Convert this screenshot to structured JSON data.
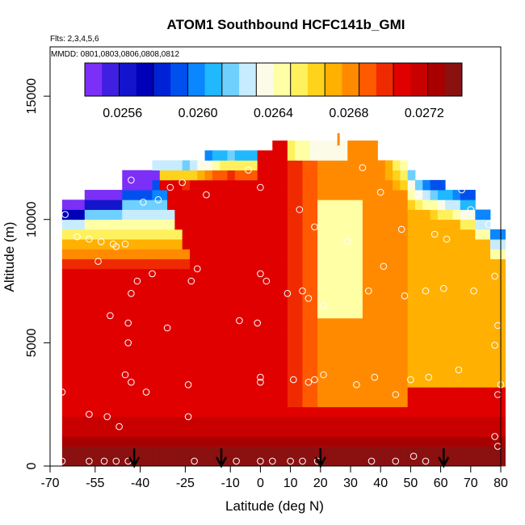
{
  "chart_data": {
    "type": "heatmap",
    "title": "ATOM1 Southbound HCFC141b_GMI",
    "subtitle_flights": "Flts: 2,3,4,5,6",
    "subtitle_dates": "MMDD: 0801,0803,0806,0808,0812",
    "xlabel": "Latitude (deg N)",
    "ylabel": "Altitude (m)",
    "xlim": [
      -70,
      80
    ],
    "ylim": [
      0,
      17000
    ],
    "x_ticks": [
      -70,
      -55,
      -40,
      -25,
      -10,
      0,
      10,
      20,
      30,
      40,
      50,
      60,
      70,
      80
    ],
    "x_tick_labels": [
      "-70",
      "-55",
      "-40",
      "-25",
      "-10",
      "0",
      "10",
      "20",
      "30",
      "40",
      "50",
      "60",
      "70",
      "80"
    ],
    "y_ticks": [
      0,
      5000,
      10000,
      15000
    ],
    "y_tick_labels": [
      "0",
      "5000",
      "10000",
      "15000"
    ],
    "colorbar": {
      "range": [
        0.0254,
        0.0274
      ],
      "tick_values": [
        0.0256,
        0.026,
        0.0264,
        0.0268,
        0.0272
      ],
      "tick_labels": [
        "0.0256",
        "0.0260",
        "0.0264",
        "0.0268",
        "0.0272"
      ],
      "colors": [
        "#7b2ff7",
        "#3f1fe0",
        "#1414cc",
        "#0000b8",
        "#0022d6",
        "#0050ee",
        "#0a86ff",
        "#20b8ff",
        "#6fd0ff",
        "#c7ecff",
        "#fbfbe8",
        "#ffffa6",
        "#fff15e",
        "#ffd21c",
        "#ffb000",
        "#ff8a00",
        "#ff5a00",
        "#f02a00",
        "#e00000",
        "#c80000",
        "#a80000",
        "#8b1010"
      ]
    },
    "profile_markers_lat": [
      -42,
      -13,
      20,
      61
    ],
    "observation_points": [
      {
        "lat": -65,
        "alt": 10200
      },
      {
        "lat": -61,
        "alt": 9300
      },
      {
        "lat": -57,
        "alt": 9200
      },
      {
        "lat": -53,
        "alt": 9100
      },
      {
        "lat": -49,
        "alt": 9000
      },
      {
        "lat": -45,
        "alt": 9000
      },
      {
        "lat": -48,
        "alt": 8900
      },
      {
        "lat": -54,
        "alt": 8300
      },
      {
        "lat": -43,
        "alt": 11600
      },
      {
        "lat": -39,
        "alt": 10700
      },
      {
        "lat": -34,
        "alt": 10800
      },
      {
        "lat": -30,
        "alt": 11300
      },
      {
        "lat": -26,
        "alt": 11500
      },
      {
        "lat": -18,
        "alt": 11000
      },
      {
        "lat": -4,
        "alt": 12000
      },
      {
        "lat": 0,
        "alt": 11300
      },
      {
        "lat": 13,
        "alt": 10400
      },
      {
        "lat": 18,
        "alt": 9700
      },
      {
        "lat": 29,
        "alt": 9100
      },
      {
        "lat": 34,
        "alt": 12100
      },
      {
        "lat": 40,
        "alt": 11100
      },
      {
        "lat": 47,
        "alt": 9600
      },
      {
        "lat": 52,
        "alt": 11000
      },
      {
        "lat": 58,
        "alt": 9400
      },
      {
        "lat": 62,
        "alt": 9200
      },
      {
        "lat": 67,
        "alt": 11200
      },
      {
        "lat": 70,
        "alt": 10400
      },
      {
        "lat": 76,
        "alt": 9800
      },
      {
        "lat": 78,
        "alt": 7700
      },
      {
        "lat": -36,
        "alt": 7800
      },
      {
        "lat": -41,
        "alt": 7500
      },
      {
        "lat": -43,
        "alt": 7000
      },
      {
        "lat": -21,
        "alt": 8000
      },
      {
        "lat": -23,
        "alt": 7500
      },
      {
        "lat": 0,
        "alt": 7800
      },
      {
        "lat": 2,
        "alt": 7500
      },
      {
        "lat": 9,
        "alt": 7000
      },
      {
        "lat": 14,
        "alt": 7100
      },
      {
        "lat": 16,
        "alt": 6800
      },
      {
        "lat": 21,
        "alt": 6500
      },
      {
        "lat": 36,
        "alt": 7100
      },
      {
        "lat": 41,
        "alt": 8100
      },
      {
        "lat": 48,
        "alt": 6900
      },
      {
        "lat": 55,
        "alt": 7100
      },
      {
        "lat": 61,
        "alt": 7200
      },
      {
        "lat": 71,
        "alt": 7100
      },
      {
        "lat": -50,
        "alt": 6100
      },
      {
        "lat": -44,
        "alt": 5800
      },
      {
        "lat": -31,
        "alt": 5600
      },
      {
        "lat": -7,
        "alt": 5900
      },
      {
        "lat": -1,
        "alt": 5800
      },
      {
        "lat": 79,
        "alt": 5700
      },
      {
        "lat": 78,
        "alt": 4900
      },
      {
        "lat": -44,
        "alt": 5000
      },
      {
        "lat": -45,
        "alt": 3700
      },
      {
        "lat": -43,
        "alt": 3400
      },
      {
        "lat": -24,
        "alt": 3300
      },
      {
        "lat": 0,
        "alt": 3600
      },
      {
        "lat": 0,
        "alt": 3400
      },
      {
        "lat": 11,
        "alt": 3500
      },
      {
        "lat": 16,
        "alt": 3400
      },
      {
        "lat": 18,
        "alt": 3500
      },
      {
        "lat": 21,
        "alt": 3700
      },
      {
        "lat": 32,
        "alt": 3300
      },
      {
        "lat": 38,
        "alt": 3600
      },
      {
        "lat": 45,
        "alt": 2900
      },
      {
        "lat": 50,
        "alt": 3500
      },
      {
        "lat": 56,
        "alt": 3600
      },
      {
        "lat": 66,
        "alt": 3900
      },
      {
        "lat": 80,
        "alt": 3300
      },
      {
        "lat": -66,
        "alt": 3000
      },
      {
        "lat": -38,
        "alt": 3000
      },
      {
        "lat": 79,
        "alt": 2900
      },
      {
        "lat": -57,
        "alt": 2100
      },
      {
        "lat": -51,
        "alt": 2000
      },
      {
        "lat": -47,
        "alt": 1600
      },
      {
        "lat": -24,
        "alt": 2000
      },
      {
        "lat": 78,
        "alt": 1200
      },
      {
        "lat": 79,
        "alt": 800
      },
      {
        "lat": -66,
        "alt": 200
      },
      {
        "lat": -57,
        "alt": 200
      },
      {
        "lat": -52,
        "alt": 200
      },
      {
        "lat": -48,
        "alt": 200
      },
      {
        "lat": -44,
        "alt": 200
      },
      {
        "lat": -22,
        "alt": 200
      },
      {
        "lat": -8,
        "alt": 200
      },
      {
        "lat": 0,
        "alt": 200
      },
      {
        "lat": 4,
        "alt": 200
      },
      {
        "lat": 10,
        "alt": 200
      },
      {
        "lat": 14,
        "alt": 200
      },
      {
        "lat": 19,
        "alt": 200
      },
      {
        "lat": 37,
        "alt": 200
      },
      {
        "lat": 45,
        "alt": 200
      },
      {
        "lat": 51,
        "alt": 400
      },
      {
        "lat": 55,
        "alt": 200
      }
    ]
  }
}
